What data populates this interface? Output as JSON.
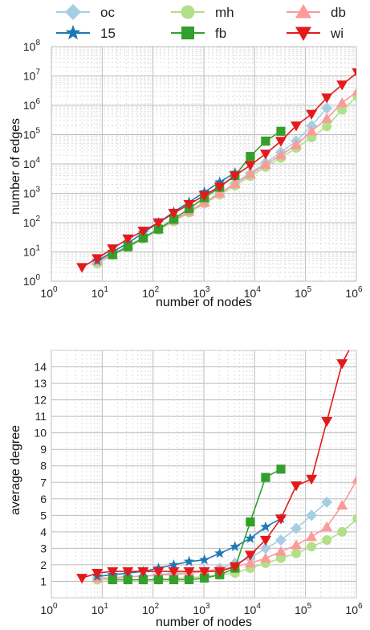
{
  "legend": {
    "entries": [
      {
        "label": "oc",
        "color": "#a6cee3",
        "marker": "diamond"
      },
      {
        "label": "mh",
        "color": "#b2df8a",
        "marker": "circle"
      },
      {
        "label": "db",
        "color": "#fb9a99",
        "marker": "triangle-up"
      },
      {
        "label": "15",
        "color": "#1f78b4",
        "marker": "star"
      },
      {
        "label": "fb",
        "color": "#33a02c",
        "marker": "square"
      },
      {
        "label": "wi",
        "color": "#e31a1c",
        "marker": "triangle-down"
      }
    ]
  },
  "chart_data": [
    {
      "type": "line",
      "xlabel": "number of nodes",
      "ylabel": "number of edges",
      "xscale": "log",
      "yscale": "log",
      "xlim": [
        1,
        1000000
      ],
      "ylim": [
        1,
        100000000
      ],
      "xticks": [
        {
          "base": "10",
          "exp": "0"
        },
        {
          "base": "10",
          "exp": "1"
        },
        {
          "base": "10",
          "exp": "2"
        },
        {
          "base": "10",
          "exp": "3"
        },
        {
          "base": "10",
          "exp": "4"
        },
        {
          "base": "10",
          "exp": "5"
        },
        {
          "base": "10",
          "exp": "6"
        }
      ],
      "yticks": [
        {
          "base": "10",
          "exp": "0"
        },
        {
          "base": "10",
          "exp": "1"
        },
        {
          "base": "10",
          "exp": "2"
        },
        {
          "base": "10",
          "exp": "3"
        },
        {
          "base": "10",
          "exp": "4"
        },
        {
          "base": "10",
          "exp": "5"
        },
        {
          "base": "10",
          "exp": "6"
        },
        {
          "base": "10",
          "exp": "7"
        },
        {
          "base": "10",
          "exp": "8"
        }
      ],
      "grid": true,
      "series": [
        {
          "name": "oc",
          "x": [
            8,
            16,
            32,
            64,
            128,
            256,
            512,
            1024,
            2048,
            4096,
            8192,
            16384,
            32768,
            65536,
            131072,
            262144
          ],
          "y": [
            5,
            9,
            15,
            30,
            58,
            115,
            240,
            500,
            1000,
            2200,
            4800,
            11000,
            25000,
            60000,
            200000,
            800000
          ]
        },
        {
          "name": "mh",
          "x": [
            8,
            16,
            32,
            64,
            128,
            256,
            512,
            1024,
            2048,
            4096,
            8192,
            16384,
            32768,
            65536,
            131072,
            262144,
            524288,
            1048576
          ],
          "y": [
            4,
            8,
            14,
            28,
            56,
            110,
            220,
            450,
            900,
            1800,
            3800,
            7800,
            16000,
            35000,
            80000,
            190000,
            700000,
            2000000
          ]
        },
        {
          "name": "db",
          "x": [
            8,
            16,
            32,
            64,
            128,
            256,
            512,
            1024,
            2048,
            4096,
            8192,
            16384,
            32768,
            65536,
            131072,
            262144,
            524288,
            1048576
          ],
          "y": [
            5,
            8,
            16,
            30,
            60,
            120,
            240,
            480,
            1000,
            2100,
            4500,
            9500,
            20000,
            45000,
            130000,
            350000,
            1200000,
            3000000
          ]
        },
        {
          "name": "15",
          "x": [
            8,
            16,
            32,
            64,
            128,
            256,
            512,
            1024,
            2048,
            4096
          ],
          "y": [
            5,
            10,
            20,
            45,
            100,
            230,
            500,
            1100,
            2400,
            5000
          ]
        },
        {
          "name": "fb",
          "x": [
            16,
            32,
            64,
            128,
            256,
            512,
            1024,
            2048,
            4096,
            8192,
            16384,
            32768
          ],
          "y": [
            8,
            15,
            30,
            60,
            130,
            300,
            700,
            1600,
            4000,
            18000,
            60000,
            130000
          ]
        },
        {
          "name": "wi",
          "x": [
            4,
            8,
            16,
            32,
            64,
            128,
            256,
            512,
            1024,
            2048,
            4096,
            8192,
            16384,
            32768,
            65536,
            131072,
            262144,
            524288,
            1048576
          ],
          "y": [
            3,
            6,
            13,
            28,
            52,
            100,
            210,
            420,
            850,
            1700,
            4000,
            9000,
            22000,
            60000,
            200000,
            500000,
            1800000,
            5000000,
            13000000
          ]
        }
      ]
    },
    {
      "type": "line",
      "xlabel": "number of nodes",
      "ylabel": "average degree",
      "xscale": "log",
      "yscale": "linear",
      "xlim": [
        1,
        1000000
      ],
      "ylim": [
        0,
        15
      ],
      "xticks": [
        {
          "base": "10",
          "exp": "0"
        },
        {
          "base": "10",
          "exp": "1"
        },
        {
          "base": "10",
          "exp": "2"
        },
        {
          "base": "10",
          "exp": "3"
        },
        {
          "base": "10",
          "exp": "4"
        },
        {
          "base": "10",
          "exp": "5"
        },
        {
          "base": "10",
          "exp": "6"
        }
      ],
      "yticks": [
        "1",
        "2",
        "3",
        "4",
        "5",
        "6",
        "7",
        "8",
        "9",
        "10",
        "11",
        "12",
        "13",
        "14"
      ],
      "grid": true,
      "series": [
        {
          "name": "oc",
          "x": [
            8,
            16,
            32,
            64,
            128,
            256,
            512,
            1024,
            2048,
            4096,
            8192,
            16384,
            32768,
            65536,
            131072,
            262144
          ],
          "y": [
            1.2,
            1.2,
            1.3,
            1.3,
            1.4,
            1.5,
            1.5,
            1.6,
            1.8,
            2.1,
            2.4,
            3.0,
            3.5,
            4.2,
            5.0,
            5.8
          ]
        },
        {
          "name": "mh",
          "x": [
            8,
            16,
            32,
            64,
            128,
            256,
            512,
            1024,
            2048,
            4096,
            8192,
            16384,
            32768,
            65536,
            131072,
            262144,
            524288,
            1048576
          ],
          "y": [
            1.1,
            1.1,
            1.1,
            1.1,
            1.1,
            1.2,
            1.2,
            1.3,
            1.4,
            1.5,
            1.8,
            2.1,
            2.4,
            2.7,
            3.1,
            3.5,
            4.0,
            4.8
          ]
        },
        {
          "name": "db",
          "x": [
            8,
            16,
            32,
            64,
            128,
            256,
            512,
            1024,
            2048,
            4096,
            8192,
            16384,
            32768,
            65536,
            131072,
            262144,
            524288,
            1048576
          ],
          "y": [
            1.2,
            1.2,
            1.3,
            1.3,
            1.4,
            1.4,
            1.5,
            1.6,
            1.7,
            1.9,
            2.1,
            2.4,
            2.8,
            3.2,
            3.7,
            4.3,
            5.6,
            7.2
          ]
        },
        {
          "name": "15",
          "x": [
            8,
            16,
            32,
            64,
            128,
            256,
            512,
            1024,
            2048,
            4096,
            8192,
            16384,
            32768
          ],
          "y": [
            1.3,
            1.4,
            1.5,
            1.6,
            1.8,
            2.0,
            2.2,
            2.3,
            2.7,
            3.1,
            3.6,
            4.3,
            4.8
          ]
        },
        {
          "name": "fb",
          "x": [
            16,
            32,
            64,
            128,
            256,
            512,
            1024,
            2048,
            4096,
            8192,
            16384,
            32768
          ],
          "y": [
            1.1,
            1.1,
            1.1,
            1.1,
            1.1,
            1.1,
            1.2,
            1.4,
            1.8,
            4.6,
            7.3,
            7.8
          ]
        },
        {
          "name": "wi",
          "x": [
            4,
            8,
            16,
            32,
            64,
            128,
            256,
            512,
            1024,
            2048,
            4096,
            8192,
            16384,
            32768,
            65536,
            131072,
            262144,
            524288,
            1048576
          ],
          "y": [
            1.2,
            1.5,
            1.6,
            1.6,
            1.6,
            1.6,
            1.6,
            1.6,
            1.6,
            1.6,
            1.9,
            2.6,
            3.5,
            4.8,
            6.8,
            7.2,
            10.7,
            14.2,
            16.0
          ]
        }
      ]
    }
  ]
}
